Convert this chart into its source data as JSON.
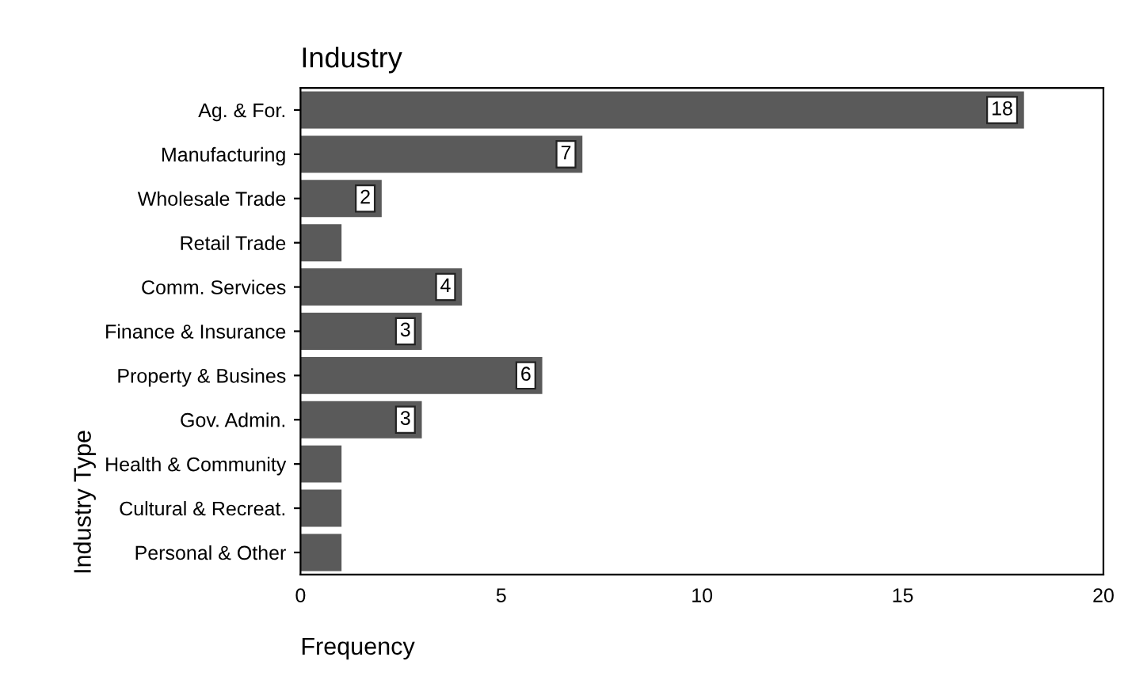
{
  "chart_data": {
    "type": "bar",
    "orientation": "horizontal",
    "title": "Industry",
    "xlabel": "Frequency",
    "ylabel": "Industry Type",
    "categories": [
      "Ag. & For.",
      "Manufacturing",
      "Wholesale Trade",
      "Retail Trade",
      "Comm. Services",
      "Finance & Insurance",
      "Property & Busines",
      "Gov. Admin.",
      "Health & Community",
      "Cultural & Recreat.",
      "Personal & Other"
    ],
    "values": [
      18,
      7,
      2,
      1,
      4,
      3,
      6,
      3,
      1,
      1,
      1
    ],
    "value_labels": [
      "18",
      "7",
      "2",
      null,
      "4",
      "3",
      "6",
      "3",
      null,
      null,
      null
    ],
    "color": "#5a5a5a",
    "xlim": [
      0,
      20
    ],
    "xticks": [
      0,
      5,
      10,
      15,
      20
    ],
    "grid": false,
    "legend": false
  }
}
